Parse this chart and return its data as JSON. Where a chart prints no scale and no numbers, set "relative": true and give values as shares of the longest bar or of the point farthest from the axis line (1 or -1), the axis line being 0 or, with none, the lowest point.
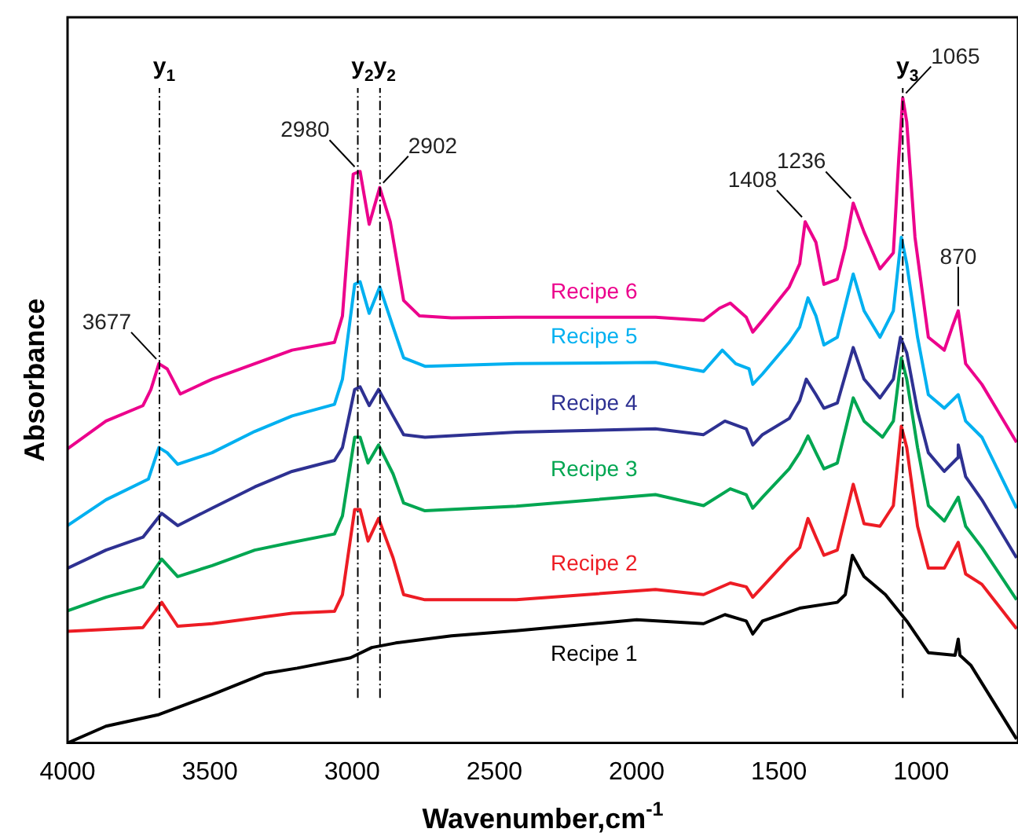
{
  "chart_data": {
    "type": "line",
    "relative": true,
    "xlabel": "Wavenumber,cm$^{-1}$",
    "ylabel": "Absorbance",
    "xlim": [
      4000,
      660
    ],
    "xticks": [
      4000,
      3500,
      3000,
      2500,
      2000,
      1500,
      1000
    ],
    "grid": false,
    "legend": false,
    "marker": "none",
    "line_style": "solid",
    "series": [
      {
        "name": "Recipe 1",
        "color": "#000000",
        "x": [
          4000,
          3865,
          3679,
          3492,
          3305,
          3193,
          3006,
          2931,
          2847,
          2651,
          2423,
          2000,
          1765,
          1690,
          1615,
          1592,
          1558,
          1427,
          1295,
          1267,
          1242,
          1201,
          1126,
          1051,
          975,
          881,
          870,
          864,
          825,
          665
        ],
        "values": [
          0.0,
          0.026,
          0.044,
          0.075,
          0.108,
          0.116,
          0.132,
          0.148,
          0.155,
          0.166,
          0.174,
          0.191,
          0.185,
          0.199,
          0.189,
          0.169,
          0.189,
          0.209,
          0.218,
          0.23,
          0.291,
          0.258,
          0.23,
          0.189,
          0.14,
          0.136,
          0.161,
          0.136,
          0.12,
          0.006
        ]
      },
      {
        "name": "Recipe 2",
        "color": "#ed1c24",
        "x": [
          4000,
          3735,
          3669,
          3613,
          3492,
          3211,
          3062,
          3034,
          2991,
          2972,
          2944,
          2907,
          2856,
          2819,
          2744,
          2423,
          1934,
          1765,
          1671,
          1615,
          1592,
          1558,
          1464,
          1427,
          1398,
          1370,
          1342,
          1295,
          1239,
          1201,
          1145,
          1098,
          1070,
          1051,
          1013,
          975,
          919,
          870,
          844,
          787,
          665
        ],
        "values": [
          0.173,
          0.179,
          0.218,
          0.181,
          0.185,
          0.201,
          0.204,
          0.23,
          0.362,
          0.362,
          0.313,
          0.348,
          0.287,
          0.23,
          0.222,
          0.222,
          0.238,
          0.23,
          0.248,
          0.242,
          0.226,
          0.242,
          0.287,
          0.303,
          0.348,
          0.319,
          0.291,
          0.299,
          0.401,
          0.34,
          0.336,
          0.368,
          0.491,
          0.458,
          0.336,
          0.271,
          0.271,
          0.311,
          0.262,
          0.246,
          0.177
        ]
      },
      {
        "name": "Recipe 3",
        "color": "#00a651",
        "x": [
          4000,
          3865,
          3735,
          3669,
          3613,
          3492,
          3342,
          3211,
          3062,
          3034,
          2991,
          2972,
          2944,
          2907,
          2856,
          2819,
          2744,
          2423,
          1934,
          1765,
          1671,
          1615,
          1592,
          1558,
          1464,
          1427,
          1398,
          1370,
          1342,
          1295,
          1239,
          1201,
          1136,
          1098,
          1070,
          1051,
          1013,
          975,
          919,
          870,
          844,
          787,
          665
        ],
        "values": [
          0.205,
          0.226,
          0.242,
          0.285,
          0.258,
          0.275,
          0.299,
          0.311,
          0.324,
          0.352,
          0.474,
          0.474,
          0.434,
          0.462,
          0.417,
          0.372,
          0.36,
          0.367,
          0.385,
          0.368,
          0.394,
          0.385,
          0.364,
          0.381,
          0.425,
          0.45,
          0.476,
          0.45,
          0.425,
          0.434,
          0.535,
          0.499,
          0.474,
          0.499,
          0.597,
          0.564,
          0.458,
          0.368,
          0.344,
          0.381,
          0.336,
          0.303,
          0.222
        ]
      },
      {
        "name": "Recipe 4",
        "color": "#2e3192",
        "x": [
          4000,
          3865,
          3735,
          3669,
          3613,
          3492,
          3342,
          3211,
          3062,
          3034,
          2991,
          2972,
          2940,
          2907,
          2856,
          2819,
          2744,
          2423,
          1934,
          1765,
          1690,
          1615,
          1592,
          1558,
          1464,
          1427,
          1404,
          1370,
          1342,
          1295,
          1239,
          1201,
          1145,
          1098,
          1073,
          1051,
          1013,
          975,
          919,
          872,
          870,
          844,
          787,
          665
        ],
        "values": [
          0.271,
          0.299,
          0.319,
          0.356,
          0.337,
          0.364,
          0.397,
          0.421,
          0.438,
          0.458,
          0.548,
          0.552,
          0.523,
          0.548,
          0.507,
          0.478,
          0.474,
          0.482,
          0.487,
          0.478,
          0.499,
          0.487,
          0.462,
          0.478,
          0.503,
          0.531,
          0.564,
          0.54,
          0.519,
          0.527,
          0.613,
          0.564,
          0.535,
          0.564,
          0.629,
          0.605,
          0.515,
          0.45,
          0.421,
          0.442,
          0.462,
          0.413,
          0.377,
          0.287
        ]
      },
      {
        "name": "Recipe 5",
        "color": "#00b0f0",
        "x": [
          4000,
          3865,
          3716,
          3679,
          3650,
          3613,
          3492,
          3342,
          3211,
          3062,
          3034,
          2991,
          2972,
          2940,
          2903,
          2856,
          2819,
          2744,
          2423,
          1934,
          1765,
          1699,
          1652,
          1605,
          1592,
          1558,
          1464,
          1427,
          1398,
          1370,
          1342,
          1295,
          1239,
          1201,
          1145,
          1098,
          1070,
          1051,
          1013,
          975,
          919,
          870,
          844,
          787,
          665
        ],
        "values": [
          0.337,
          0.377,
          0.409,
          0.458,
          0.45,
          0.432,
          0.45,
          0.483,
          0.507,
          0.525,
          0.564,
          0.711,
          0.715,
          0.666,
          0.707,
          0.645,
          0.597,
          0.584,
          0.588,
          0.59,
          0.576,
          0.609,
          0.588,
          0.58,
          0.556,
          0.572,
          0.621,
          0.645,
          0.69,
          0.662,
          0.617,
          0.629,
          0.727,
          0.67,
          0.629,
          0.67,
          0.784,
          0.743,
          0.629,
          0.54,
          0.519,
          0.54,
          0.499,
          0.474,
          0.364
        ]
      },
      {
        "name": "Recipe 6",
        "color": "#ec008c",
        "x": [
          4000,
          3865,
          3735,
          3707,
          3679,
          3650,
          3604,
          3492,
          3342,
          3211,
          3062,
          3034,
          2996,
          2972,
          2940,
          2903,
          2866,
          2819,
          2763,
          2651,
          2423,
          1934,
          1765,
          1709,
          1671,
          1615,
          1592,
          1558,
          1464,
          1427,
          1408,
          1370,
          1342,
          1295,
          1267,
          1239,
          1201,
          1145,
          1098,
          1079,
          1065,
          1051,
          1022,
          975,
          919,
          891,
          870,
          844,
          787,
          665
        ],
        "values": [
          0.456,
          0.499,
          0.523,
          0.548,
          0.588,
          0.58,
          0.541,
          0.564,
          0.588,
          0.609,
          0.621,
          0.662,
          0.882,
          0.886,
          0.804,
          0.861,
          0.808,
          0.686,
          0.662,
          0.659,
          0.66,
          0.66,
          0.655,
          0.674,
          0.682,
          0.66,
          0.637,
          0.655,
          0.707,
          0.743,
          0.808,
          0.776,
          0.711,
          0.719,
          0.768,
          0.837,
          0.792,
          0.735,
          0.76,
          0.906,
          1.0,
          0.963,
          0.784,
          0.629,
          0.609,
          0.645,
          0.67,
          0.588,
          0.556,
          0.466
        ]
      }
    ],
    "ref_lines": [
      {
        "axis": "x",
        "value": 3677,
        "label": "y$_{1}$",
        "color": "#000000",
        "line_style": "dashed"
      },
      {
        "axis": "x",
        "value": 2980,
        "label": "y$_{2}$",
        "color": "#000000",
        "line_style": "dashed"
      },
      {
        "axis": "x",
        "value": 2902,
        "label": "y$_{2}$",
        "color": "#000000",
        "line_style": "dashed"
      },
      {
        "axis": "x",
        "value": 1065,
        "label": "y$_{3}$",
        "color": "#000000",
        "line_style": "dashed"
      }
    ],
    "annotations": [
      {
        "text": "3677",
        "x": 3677,
        "y": 0.588
      },
      {
        "text": "2980",
        "x": 2980,
        "y": 0.886
      },
      {
        "text": "2902",
        "x": 2902,
        "y": 0.861
      },
      {
        "text": "1408",
        "x": 1408,
        "y": 0.808
      },
      {
        "text": "1236",
        "x": 1236,
        "y": 0.837
      },
      {
        "text": "1065",
        "x": 1065,
        "y": 1.0
      },
      {
        "text": "870",
        "x": 870,
        "y": 0.67
      }
    ]
  }
}
